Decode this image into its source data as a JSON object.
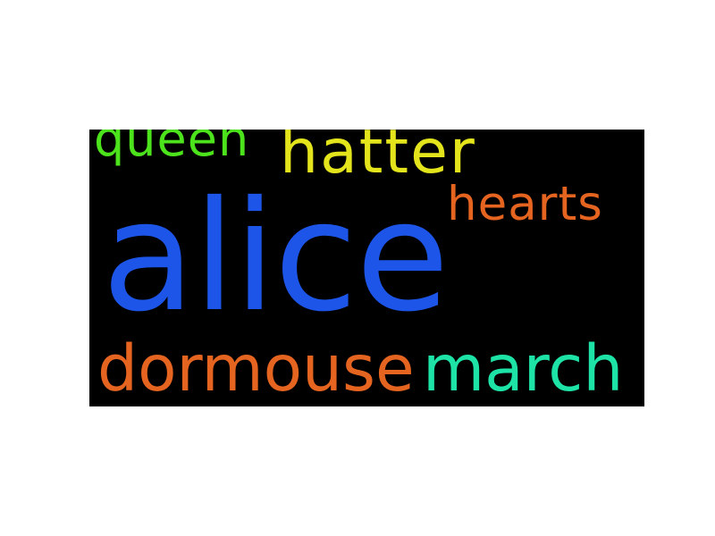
{
  "wordcloud": {
    "background": "#000000",
    "words": [
      {
        "text": "alice",
        "color": "#1c55e8"
      },
      {
        "text": "queen",
        "color": "#4ce21c"
      },
      {
        "text": "hatter",
        "color": "#e3e41c"
      },
      {
        "text": "hearts",
        "color": "#e46420"
      },
      {
        "text": "dormouse",
        "color": "#e46420"
      },
      {
        "text": "march",
        "color": "#1ee3a7"
      }
    ]
  }
}
